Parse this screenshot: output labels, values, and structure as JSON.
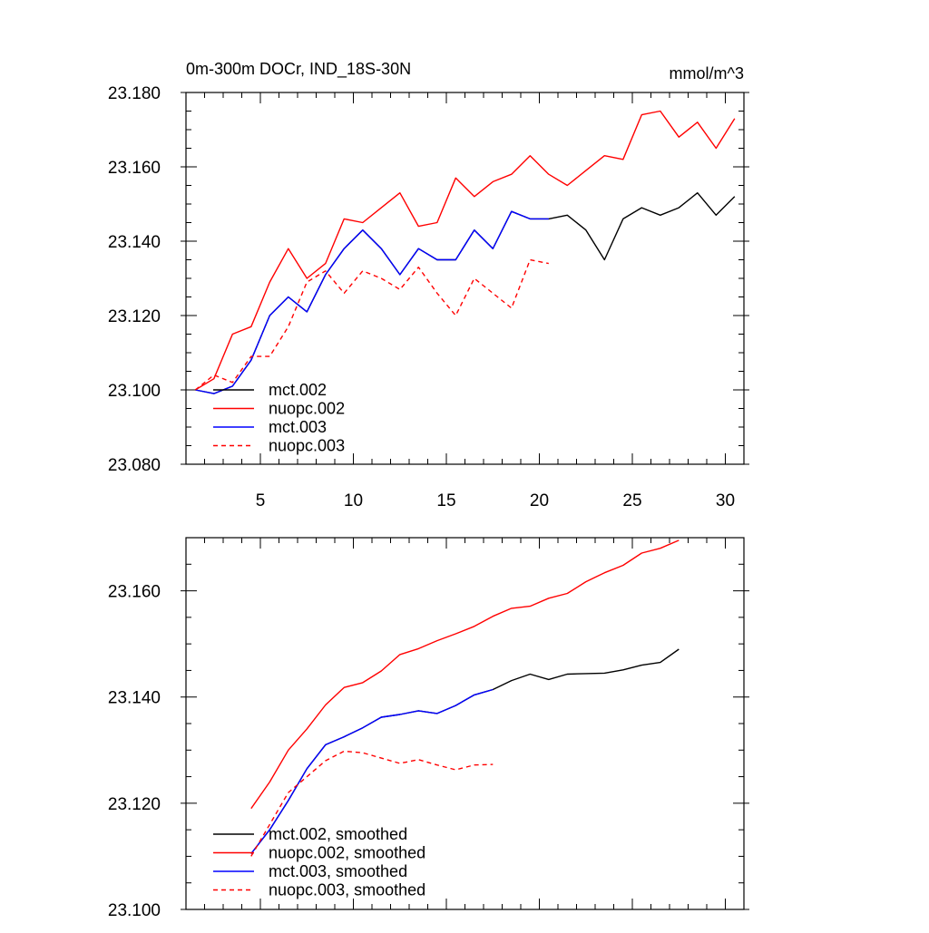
{
  "chart_data": [
    {
      "type": "line",
      "title": "0m-300m DOCr, IND_18S-30N",
      "units": "mmol/m^3",
      "xlim": [
        1,
        31
      ],
      "ylim": [
        23.08,
        23.18
      ],
      "xticks": [
        5,
        10,
        15,
        20,
        25,
        30
      ],
      "xtick_labels": [
        "5",
        "10",
        "15",
        "20",
        "25",
        "30"
      ],
      "yticks": [
        23.08,
        23.1,
        23.12,
        23.14,
        23.16,
        23.18
      ],
      "ytick_labels": [
        "23.080",
        "23.100",
        "23.120",
        "23.140",
        "23.160",
        "23.180"
      ],
      "grid": false,
      "legend": "lower-left",
      "series": [
        {
          "name": "mct.002",
          "color": "#000000",
          "dash": "solid",
          "x": [
            1.5,
            2.5,
            3.5,
            4.5,
            5.5,
            6.5,
            7.5,
            8.5,
            9.5,
            10.5,
            11.5,
            12.5,
            13.5,
            14.5,
            15.5,
            16.5,
            17.5,
            18.5,
            19.5,
            20.5,
            21.5,
            22.5,
            23.5,
            24.5,
            25.5,
            26.5,
            27.5,
            28.5,
            29.5,
            30.5
          ],
          "values": [
            23.1,
            23.099,
            23.101,
            23.108,
            23.12,
            23.125,
            23.121,
            23.131,
            23.138,
            23.143,
            23.138,
            23.131,
            23.138,
            23.135,
            23.135,
            23.143,
            23.138,
            23.148,
            23.146,
            23.146,
            23.147,
            23.143,
            23.135,
            23.146,
            23.149,
            23.147,
            23.149,
            23.153,
            23.147,
            23.152
          ]
        },
        {
          "name": "nuopc.002",
          "color": "#ff0000",
          "dash": "solid",
          "x": [
            1.5,
            2.5,
            3.5,
            4.5,
            5.5,
            6.5,
            7.5,
            8.5,
            9.5,
            10.5,
            11.5,
            12.5,
            13.5,
            14.5,
            15.5,
            16.5,
            17.5,
            18.5,
            19.5,
            20.5,
            21.5,
            22.5,
            23.5,
            24.5,
            25.5,
            26.5,
            27.5,
            28.5,
            29.5,
            30.5
          ],
          "values": [
            23.1,
            23.103,
            23.115,
            23.117,
            23.129,
            23.138,
            23.13,
            23.134,
            23.146,
            23.145,
            23.149,
            23.153,
            23.144,
            23.145,
            23.157,
            23.152,
            23.156,
            23.158,
            23.163,
            23.158,
            23.155,
            23.159,
            23.163,
            23.162,
            23.174,
            23.175,
            23.168,
            23.172,
            23.165,
            23.173
          ]
        },
        {
          "name": "mct.003",
          "color": "#0000ff",
          "dash": "solid",
          "x": [
            1.5,
            2.5,
            3.5,
            4.5,
            5.5,
            6.5,
            7.5,
            8.5,
            9.5,
            10.5,
            11.5,
            12.5,
            13.5,
            14.5,
            15.5,
            16.5,
            17.5,
            18.5,
            19.5,
            20.5
          ],
          "values": [
            23.1,
            23.099,
            23.101,
            23.108,
            23.12,
            23.125,
            23.121,
            23.131,
            23.138,
            23.143,
            23.138,
            23.131,
            23.138,
            23.135,
            23.135,
            23.143,
            23.138,
            23.148,
            23.146,
            23.146
          ]
        },
        {
          "name": "nuopc.003",
          "color": "#ff0000",
          "dash": "dashed",
          "x": [
            1.5,
            2.5,
            3.5,
            4.5,
            5.5,
            6.5,
            7.5,
            8.5,
            9.5,
            10.5,
            11.5,
            12.5,
            13.5,
            14.5,
            15.5,
            16.5,
            17.5,
            18.5,
            19.5,
            20.5
          ],
          "values": [
            23.1,
            23.104,
            23.102,
            23.109,
            23.109,
            23.117,
            23.129,
            23.132,
            23.126,
            23.132,
            23.13,
            23.127,
            23.133,
            23.126,
            23.12,
            23.13,
            23.126,
            23.122,
            23.135,
            23.134
          ]
        }
      ]
    },
    {
      "type": "line",
      "xlim": [
        1,
        31
      ],
      "ylim": [
        23.1,
        23.17
      ],
      "xticks": [
        5,
        10,
        15,
        20,
        25,
        30
      ],
      "yticks": [
        23.1,
        23.12,
        23.14,
        23.16
      ],
      "ytick_labels": [
        "23.100",
        "23.120",
        "23.140",
        "23.160"
      ],
      "grid": false,
      "legend": "lower-left",
      "series": [
        {
          "name": "mct.002, smoothed",
          "color": "#000000",
          "dash": "solid",
          "x": [
            4.5,
            5.5,
            6.5,
            7.5,
            8.5,
            9.5,
            10.5,
            11.5,
            12.5,
            13.5,
            14.5,
            15.5,
            16.5,
            17.5,
            18.5,
            19.5,
            20.5,
            21.5,
            22.5,
            23.5,
            24.5,
            25.5,
            26.5,
            27.5
          ],
          "values": [
            23.1105,
            23.115,
            23.1205,
            23.1265,
            23.131,
            23.1325,
            23.1342,
            23.1362,
            23.1367,
            23.1374,
            23.1369,
            23.1384,
            23.1404,
            23.1414,
            23.1431,
            23.1443,
            23.1433,
            23.1443,
            23.1444,
            23.1445,
            23.1451,
            23.146,
            23.1465,
            23.149
          ]
        },
        {
          "name": "nuopc.002, smoothed",
          "color": "#ff0000",
          "dash": "solid",
          "x": [
            4.5,
            5.5,
            6.5,
            7.5,
            8.5,
            9.5,
            10.5,
            11.5,
            12.5,
            13.5,
            14.5,
            15.5,
            16.5,
            17.5,
            18.5,
            19.5,
            20.5,
            21.5,
            22.5,
            23.5,
            24.5,
            25.5,
            26.5,
            27.5
          ],
          "values": [
            23.119,
            23.124,
            23.13,
            23.134,
            23.1385,
            23.1418,
            23.1427,
            23.1449,
            23.148,
            23.1491,
            23.1506,
            23.1519,
            23.1533,
            23.1552,
            23.1567,
            23.1571,
            23.1586,
            23.1595,
            23.1617,
            23.1634,
            23.1648,
            23.1671,
            23.168,
            23.1695
          ]
        },
        {
          "name": "mct.003, smoothed",
          "color": "#0000ff",
          "dash": "solid",
          "x": [
            4.5,
            5.5,
            6.5,
            7.5,
            8.5,
            9.5,
            10.5,
            11.5,
            12.5,
            13.5,
            14.5,
            15.5,
            16.5,
            17.5
          ],
          "values": [
            23.1105,
            23.115,
            23.1205,
            23.1265,
            23.131,
            23.1325,
            23.1342,
            23.1362,
            23.1367,
            23.1374,
            23.1369,
            23.1384,
            23.1404,
            23.1414
          ]
        },
        {
          "name": "nuopc.003, smoothed",
          "color": "#ff0000",
          "dash": "dashed",
          "x": [
            4.5,
            5.5,
            6.5,
            7.5,
            8.5,
            9.5,
            10.5,
            11.5,
            12.5,
            13.5,
            14.5,
            15.5,
            16.5,
            17.5
          ],
          "values": [
            23.11,
            23.116,
            23.122,
            23.125,
            23.128,
            23.1298,
            23.1295,
            23.1285,
            23.1275,
            23.1282,
            23.1272,
            23.1263,
            23.1272,
            23.1273
          ]
        }
      ]
    }
  ]
}
